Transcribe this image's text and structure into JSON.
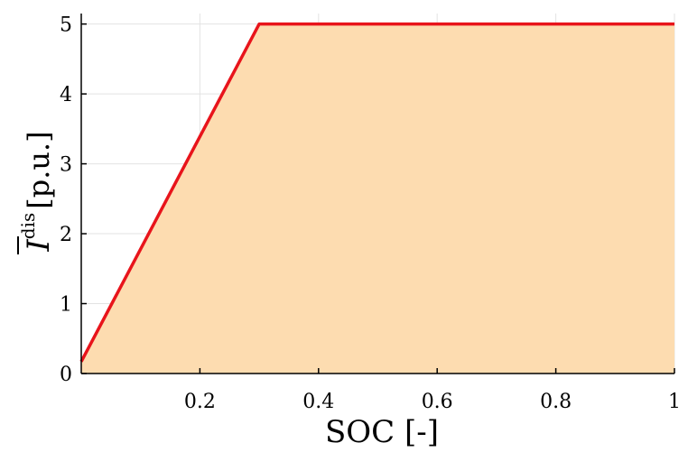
{
  "chart_data": {
    "type": "area",
    "xlabel": "SOC [-]",
    "ylabel": {
      "symbol": "I",
      "superscript": "dis",
      "unit": "[p.u.]"
    },
    "xlim": [
      0.0,
      1.0
    ],
    "ylim": [
      0,
      5.15
    ],
    "xticks": [
      0.2,
      0.4,
      0.6,
      0.8,
      1
    ],
    "xtick_labels": [
      "0.2",
      "0.4",
      "0.6",
      "0.8",
      "1"
    ],
    "yticks": [
      0,
      1,
      2,
      3,
      4,
      5
    ],
    "ytick_labels": [
      "0",
      "1",
      "2",
      "3",
      "4",
      "5"
    ],
    "grid": true,
    "series": [
      {
        "x": [
          0.0,
          0.3,
          1.0
        ],
        "y": [
          0.17,
          5.0,
          5.0
        ],
        "line_color": "#e8141b",
        "fill_color": "#fddcb0"
      }
    ]
  }
}
